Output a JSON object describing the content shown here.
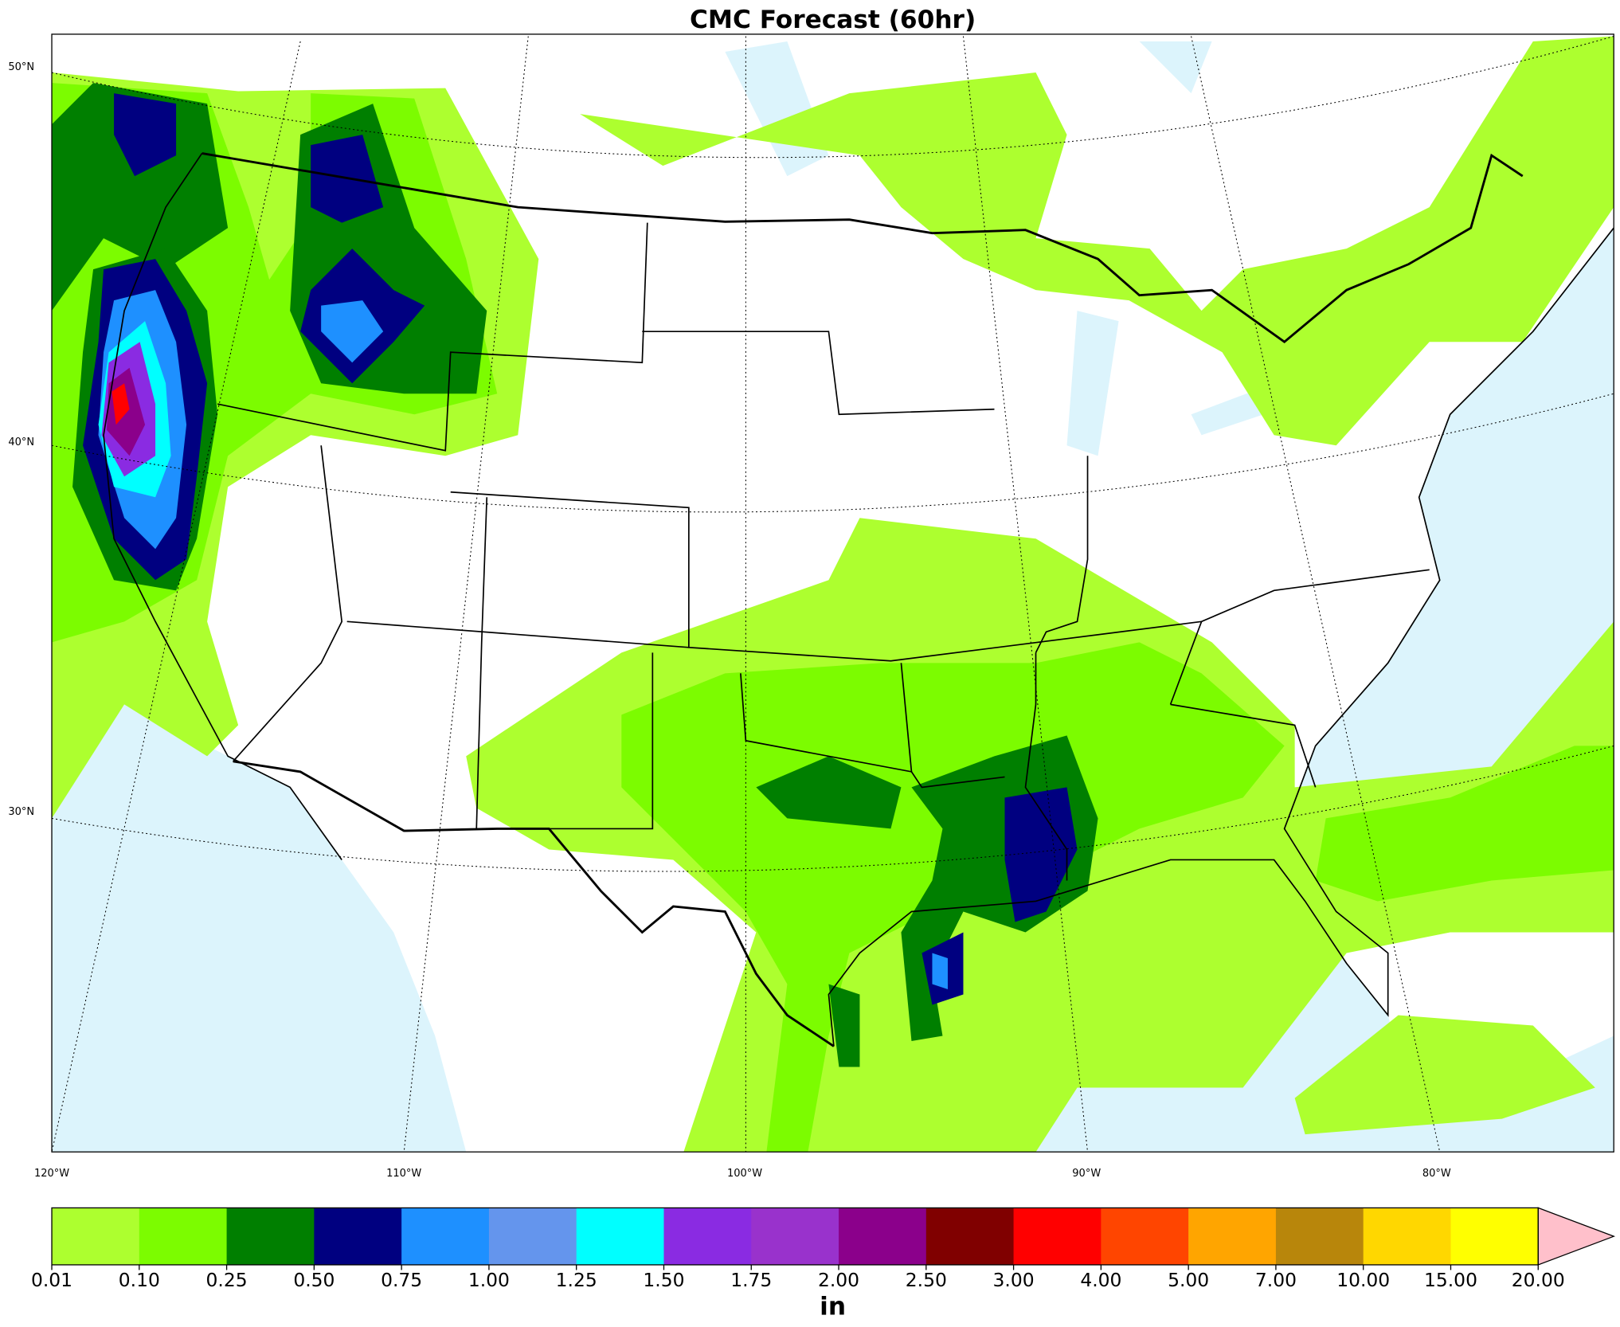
{
  "title": "CMC Forecast (60hr)",
  "map": {
    "lat_labels": [
      "50°N",
      "40°N",
      "30°N"
    ],
    "lon_labels": [
      "120°W",
      "110°W",
      "100°W",
      "90°W",
      "80°W"
    ]
  },
  "colorbar": {
    "label": "in",
    "ticks": [
      {
        "value": 0.01,
        "label": "0.01"
      },
      {
        "value": 0.1,
        "label": "0.10"
      },
      {
        "value": 0.25,
        "label": "0.25"
      },
      {
        "value": 0.5,
        "label": "0.50"
      },
      {
        "value": 0.75,
        "label": "0.75"
      },
      {
        "value": 1,
        "label": "1.00"
      },
      {
        "value": 1.25,
        "label": "1.25"
      },
      {
        "value": 1.5,
        "label": "1.50"
      },
      {
        "value": 1.75,
        "label": "1.75"
      },
      {
        "value": 2,
        "label": "2.00"
      },
      {
        "value": 2.5,
        "label": "2.50"
      },
      {
        "value": 3,
        "label": "3.00"
      },
      {
        "value": 4,
        "label": "4.00"
      },
      {
        "value": 5,
        "label": "5.00"
      },
      {
        "value": 7,
        "label": "7.00"
      },
      {
        "value": 10,
        "label": "10.00"
      },
      {
        "value": 15,
        "label": "15.00"
      },
      {
        "value": 20,
        "label": "20.00"
      }
    ],
    "colors": [
      "#adff2f",
      "#7cfc00",
      "#007f00",
      "#000080",
      "#1e90ff",
      "#6495ed",
      "#00ffff",
      "#8a2be2",
      "#9932cc",
      "#8b008b",
      "#800000",
      "#ff0000",
      "#ff4500",
      "#ffa500",
      "#b8860b",
      "#ffd700",
      "#ffff00"
    ],
    "extend_color": "#ffc0cb"
  }
}
